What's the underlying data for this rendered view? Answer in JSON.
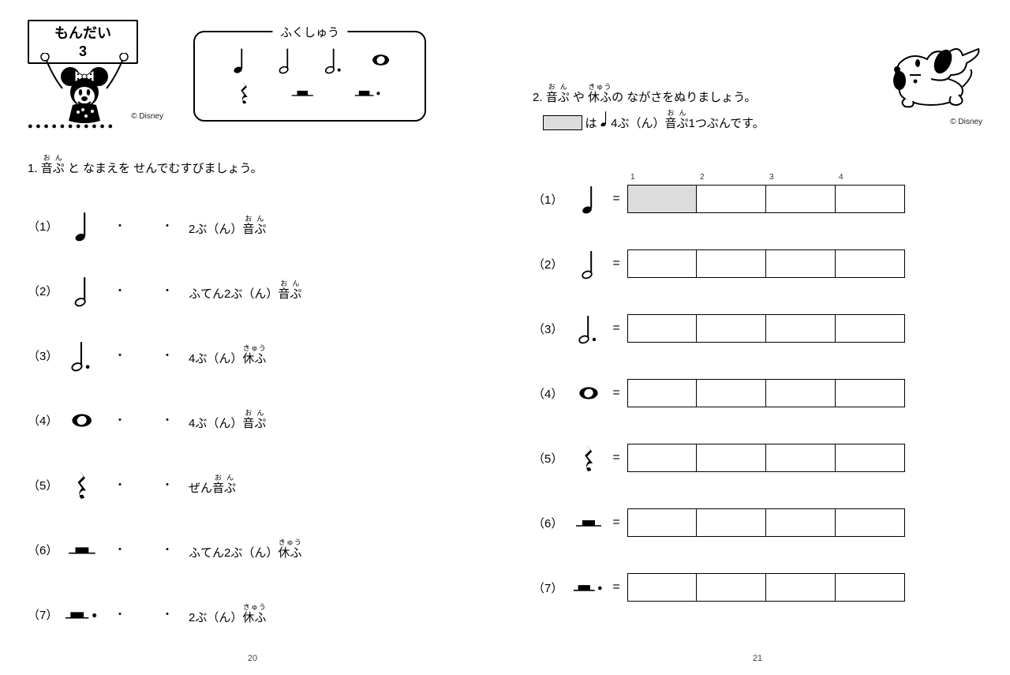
{
  "header": {
    "mondai_line1": "もんだい",
    "mondai_line2": "3",
    "fukushuu_label": "ふくしゅう",
    "disney_credit": "© Disney",
    "fukushuu_symbols_row1": [
      "quarter-note",
      "half-note",
      "dotted-half-note",
      "whole-note"
    ],
    "fukushuu_symbols_row2": [
      "quarter-rest",
      "half-rest",
      "dotted-half-rest"
    ]
  },
  "q1": {
    "prompt_pre": "1. ",
    "prompt_onpu_ruby": "おん",
    "prompt_onpu": "音ぷ",
    "prompt_post": " と なまえを せんでむすびましょう。",
    "items": [
      {
        "num": "（1）",
        "symbol": "quarter-note"
      },
      {
        "num": "（2）",
        "symbol": "half-note"
      },
      {
        "num": "（3）",
        "symbol": "dotted-half-note"
      },
      {
        "num": "（4）",
        "symbol": "whole-note"
      },
      {
        "num": "（5）",
        "symbol": "quarter-rest"
      },
      {
        "num": "（6）",
        "symbol": "half-rest"
      },
      {
        "num": "（7）",
        "symbol": "dotted-half-rest"
      }
    ],
    "labels": [
      {
        "text": "2ぶ（ん）",
        "ruby": "おん",
        "rubied": "音ぷ"
      },
      {
        "text": "ふてん2ぶ（ん）",
        "ruby": "おん",
        "rubied": "音ぷ"
      },
      {
        "text": "4ぶ（ん）",
        "ruby": "きゅう",
        "rubied": "休ふ"
      },
      {
        "text": "4ぶ（ん）",
        "ruby": "おん",
        "rubied": "音ぷ"
      },
      {
        "text": "ぜん",
        "ruby": "おん",
        "rubied": "音ぷ"
      },
      {
        "text": "ふてん2ぶ（ん）",
        "ruby": "きゅう",
        "rubied": "休ふ"
      },
      {
        "text": "2ぶ（ん）",
        "ruby": "きゅう",
        "rubied": "休ふ"
      }
    ],
    "dot": "・"
  },
  "q2": {
    "prompt_line1_pre": "2. ",
    "prompt_onpu_ruby": "おん",
    "prompt_onpu": "音ぷ",
    "prompt_line1_mid": " や ",
    "prompt_kyufu_ruby": "きゅう",
    "prompt_kyufu": "休ふ",
    "prompt_line1_post": "の ながさをぬりましょう。",
    "prompt_line2_mid": "は",
    "prompt_line2_unit_pre": "4ぶ（ん）",
    "prompt_line2_unit_ruby": "おん",
    "prompt_line2_unit": "音ぷ",
    "prompt_line2_post": "1つぶんです。",
    "box_headers": [
      "1",
      "2",
      "3",
      "4"
    ],
    "items": [
      {
        "num": "（1）",
        "symbol": "quarter-note",
        "filled": [
          true,
          false,
          false,
          false
        ]
      },
      {
        "num": "（2）",
        "symbol": "half-note",
        "filled": [
          false,
          false,
          false,
          false
        ]
      },
      {
        "num": "（3）",
        "symbol": "dotted-half-note",
        "filled": [
          false,
          false,
          false,
          false
        ]
      },
      {
        "num": "（4）",
        "symbol": "whole-note",
        "filled": [
          false,
          false,
          false,
          false
        ]
      },
      {
        "num": "（5）",
        "symbol": "quarter-rest",
        "filled": [
          false,
          false,
          false,
          false
        ]
      },
      {
        "num": "（6）",
        "symbol": "half-rest",
        "filled": [
          false,
          false,
          false,
          false
        ]
      },
      {
        "num": "（7）",
        "symbol": "dotted-half-rest",
        "filled": [
          false,
          false,
          false,
          false
        ]
      }
    ],
    "eq": "="
  },
  "page_left_num": "20",
  "page_right_num": "21",
  "colors": {
    "fill_gray": "#dcdcdc",
    "border": "#000000",
    "background": "#ffffff"
  }
}
